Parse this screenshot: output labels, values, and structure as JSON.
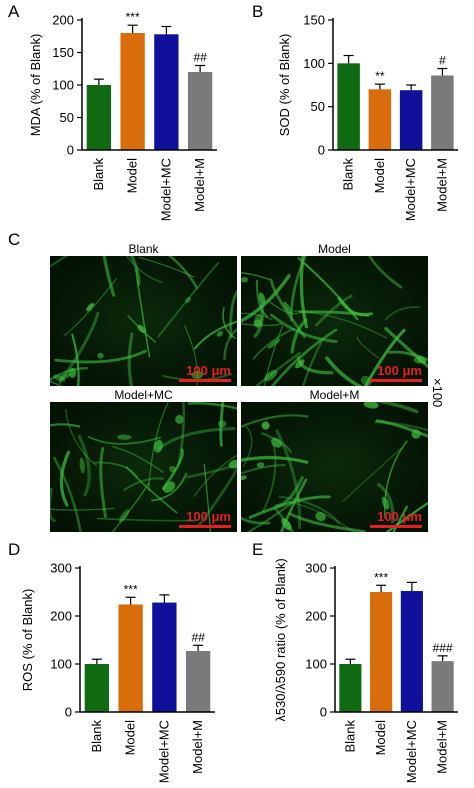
{
  "panels": {
    "a": "A",
    "b": "B",
    "c": "C",
    "d": "D",
    "e": "E"
  },
  "magnification": "×100",
  "micrographs": [
    {
      "title": "Blank",
      "scale": "100 μm"
    },
    {
      "title": "Model",
      "scale": "100 μm"
    },
    {
      "title": "Model+MC",
      "scale": "100 μm"
    },
    {
      "title": "Model+M",
      "scale": "100 μm"
    }
  ],
  "colors": {
    "blank": "#0f6a12",
    "model": "#d96d0c",
    "model_mc": "#10109a",
    "model_m": "#7a7a7a",
    "cell_green": "#3fbf3f"
  },
  "chart_data": [
    {
      "type": "bar",
      "panel": "A",
      "categories": [
        "Blank",
        "Model",
        "Model+MC",
        "Model+M"
      ],
      "values": [
        100,
        180,
        178,
        120
      ],
      "errors": [
        9,
        12,
        12,
        10
      ],
      "annotations": [
        "",
        "***",
        "",
        "##"
      ],
      "ylabel": "MDA (% of Blank)",
      "ylim": [
        0,
        200
      ],
      "yticks": [
        0,
        50,
        100,
        150,
        200
      ]
    },
    {
      "type": "bar",
      "panel": "B",
      "categories": [
        "Blank",
        "Model",
        "Model+MC",
        "Model+M"
      ],
      "values": [
        100,
        70,
        69,
        86
      ],
      "errors": [
        9,
        6,
        6,
        8
      ],
      "annotations": [
        "",
        "**",
        "",
        "#"
      ],
      "ylabel": "SOD (% of Blank)",
      "ylim": [
        0,
        150
      ],
      "yticks": [
        0,
        50,
        100,
        150
      ]
    },
    {
      "type": "bar",
      "panel": "D",
      "categories": [
        "Blank",
        "Model",
        "Model+MC",
        "Model+M"
      ],
      "values": [
        100,
        224,
        228,
        127
      ],
      "errors": [
        10,
        15,
        16,
        12
      ],
      "annotations": [
        "",
        "***",
        "",
        "##"
      ],
      "ylabel": "ROS (% of Blank)",
      "ylim": [
        0,
        300
      ],
      "yticks": [
        0,
        100,
        200,
        300
      ]
    },
    {
      "type": "bar",
      "panel": "E",
      "categories": [
        "Blank",
        "Model",
        "Model+MC",
        "Model+M"
      ],
      "values": [
        100,
        250,
        252,
        106
      ],
      "errors": [
        10,
        14,
        18,
        11
      ],
      "annotations": [
        "",
        "***",
        "",
        "###"
      ],
      "ylabel": "λ530/λ590 ratio (% of Blank)",
      "ylim": [
        0,
        300
      ],
      "yticks": [
        0,
        100,
        200,
        300
      ]
    }
  ]
}
